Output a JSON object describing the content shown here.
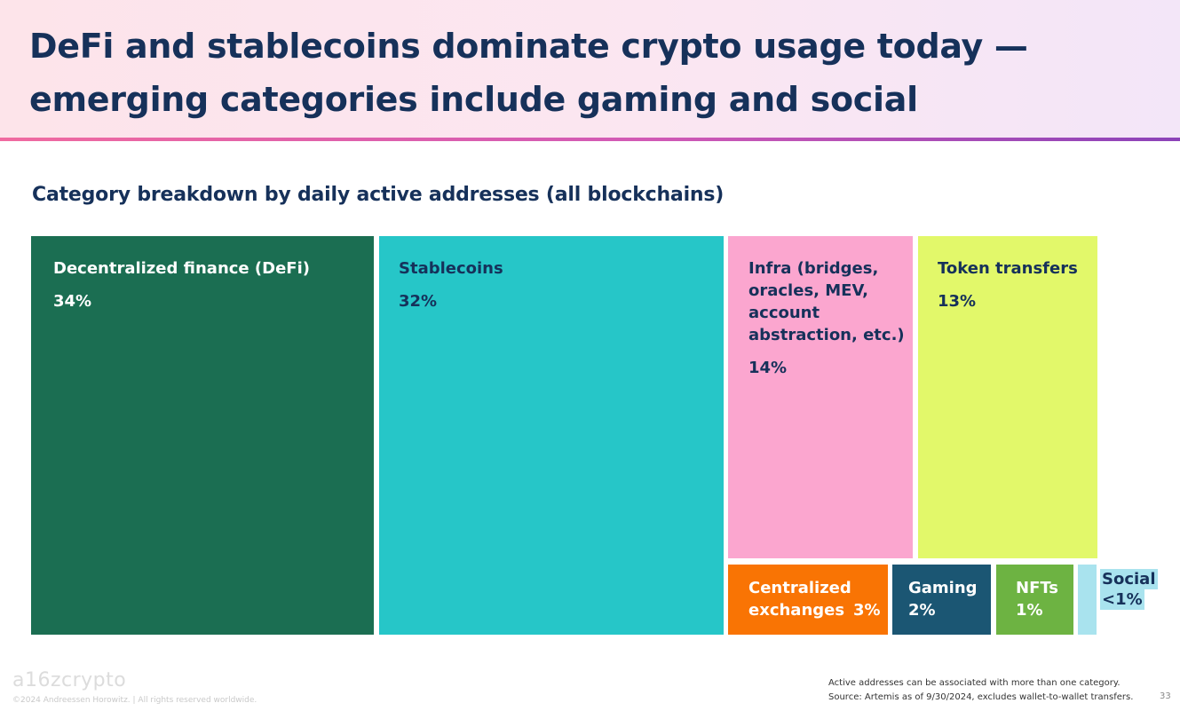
{
  "header": {
    "title": "DeFi and stablecoins dominate crypto usage today — emerging categories include gaming and social"
  },
  "chart_data": {
    "type": "treemap",
    "title": "Category breakdown by daily active addresses (all blockchains)",
    "items": [
      {
        "name": "Decentralized finance (DeFi)",
        "label": "34%",
        "value": 34,
        "color": "#1b6e52"
      },
      {
        "name": "Stablecoins",
        "label": "32%",
        "value": 32,
        "color": "#26c6c8"
      },
      {
        "name": "Infra (bridges, oracles, MEV, account abstraction, etc.)",
        "label": "14%",
        "value": 14,
        "color": "#fba6cf"
      },
      {
        "name": "Token transfers",
        "label": "13%",
        "value": 13,
        "color": "#e2f86a"
      },
      {
        "name": "Centralized exchanges",
        "label": "3%",
        "value": 3,
        "color": "#f97404"
      },
      {
        "name": "Gaming",
        "label": "2%",
        "value": 2,
        "color": "#1b5673"
      },
      {
        "name": "NFTs",
        "label": "1%",
        "value": 1,
        "color": "#6db342"
      },
      {
        "name": "Social",
        "label": "<1%",
        "value": 0.5,
        "color": "#a9e3ee"
      }
    ]
  },
  "footer": {
    "logo": "a16zcrypto",
    "copyright": "©2024 Andreessen Horowitz. | All rights reserved worldwide.",
    "note_line1": "Active addresses can be associated with more than one category.",
    "note_line2": "Source: Artemis as of 9/30/2024, excludes wallet-to-wallet transfers.",
    "page_number": "33"
  }
}
